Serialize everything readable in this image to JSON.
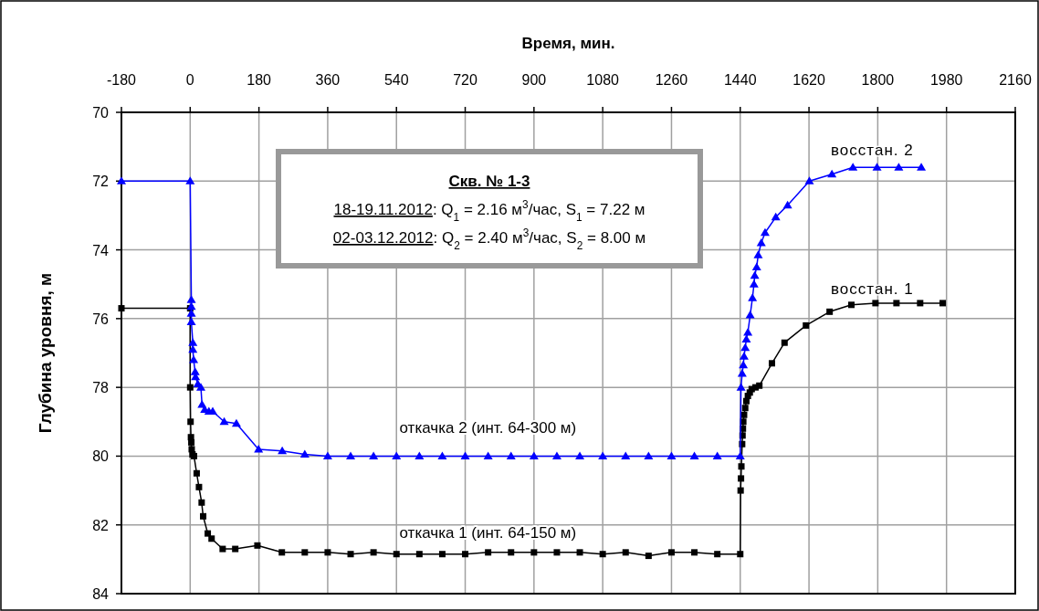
{
  "chart_data": {
    "type": "line",
    "xlabel": "Время, мин.",
    "ylabel": "Глубина уровня, м",
    "xlim": [
      -180,
      2160
    ],
    "xticks": [
      -180,
      0,
      180,
      360,
      540,
      720,
      900,
      1080,
      1260,
      1440,
      1620,
      1800,
      1980,
      2160
    ],
    "ylim": [
      84,
      70
    ],
    "yticks": [
      70,
      72,
      74,
      76,
      78,
      80,
      82,
      84
    ],
    "grid": true,
    "line_style": "solid",
    "series": [
      {
        "color": "#000000",
        "marker": "square",
        "x": [
          -180,
          0,
          0,
          1,
          2,
          3,
          4,
          6,
          10,
          17,
          23,
          30,
          34,
          46,
          56,
          85,
          118,
          176,
          240,
          300,
          360,
          420,
          480,
          540,
          600,
          660,
          720,
          780,
          840,
          900,
          960,
          1020,
          1080,
          1140,
          1200,
          1260,
          1320,
          1380,
          1440,
          1441,
          1442,
          1443,
          1445,
          1446,
          1447,
          1448,
          1450,
          1453,
          1456,
          1460,
          1465,
          1470,
          1480,
          1490,
          1523,
          1556,
          1612,
          1674,
          1731,
          1794,
          1849,
          1911,
          1970
        ],
        "values": [
          75.7,
          75.7,
          78.0,
          79.0,
          79.45,
          79.6,
          79.8,
          79.95,
          80.0,
          80.5,
          80.9,
          81.35,
          81.75,
          82.25,
          82.4,
          82.7,
          82.7,
          82.6,
          82.8,
          82.8,
          82.8,
          82.85,
          82.8,
          82.85,
          82.85,
          82.85,
          82.85,
          82.8,
          82.8,
          82.8,
          82.8,
          82.8,
          82.85,
          82.8,
          82.9,
          82.8,
          82.8,
          82.85,
          82.85,
          81.0,
          80.65,
          80.3,
          79.65,
          79.4,
          79.2,
          79.0,
          78.8,
          78.6,
          78.4,
          78.25,
          78.15,
          78.05,
          78.0,
          77.95,
          77.3,
          76.7,
          76.2,
          75.8,
          75.6,
          75.55,
          75.55,
          75.55,
          75.55
        ]
      },
      {
        "color": "#0000ff",
        "marker": "triangle",
        "x": [
          -180,
          0,
          3,
          3,
          3,
          3,
          7,
          7,
          9,
          13,
          14,
          20,
          28,
          31,
          38,
          49,
          59,
          89,
          121,
          179,
          241,
          300,
          360,
          420,
          480,
          540,
          600,
          660,
          720,
          780,
          840,
          900,
          960,
          1020,
          1080,
          1140,
          1200,
          1260,
          1320,
          1380,
          1440,
          1442,
          1445,
          1448,
          1450,
          1453,
          1456,
          1460,
          1466,
          1472,
          1476,
          1478,
          1483,
          1487,
          1495,
          1505,
          1533,
          1564,
          1621,
          1680,
          1735,
          1798,
          1855,
          1914
        ],
        "values": [
          72.0,
          72.0,
          75.45,
          75.65,
          75.85,
          76.1,
          76.7,
          76.9,
          77.2,
          77.55,
          77.7,
          77.9,
          78.0,
          78.5,
          78.65,
          78.7,
          78.7,
          79.0,
          79.05,
          79.8,
          79.85,
          79.95,
          80.0,
          80.0,
          80.0,
          80.0,
          80.0,
          80.0,
          80.0,
          80.0,
          80.0,
          80.0,
          80.0,
          80.0,
          80.0,
          80.0,
          80.0,
          80.0,
          80.0,
          80.0,
          80.0,
          78.0,
          77.6,
          77.35,
          77.1,
          76.85,
          76.6,
          76.4,
          75.9,
          75.4,
          75.0,
          74.75,
          74.5,
          74.15,
          73.8,
          73.5,
          73.05,
          72.7,
          72.0,
          71.8,
          71.6,
          71.6,
          71.6,
          71.6
        ]
      }
    ],
    "annotations": [
      "откачка 2 (инт. 64-300 м)",
      "откачка 1 (инт. 64-150 м)",
      "восстан. 2",
      "восстан. 1",
      "Скв. № 1-3",
      "18-19.11.2012: Q$_{1}$ = 2.16 м$^{3}$/час, S$_{1}$ = 7.22 м",
      "02-03.12.2012: Q$_{2}$ = 2.40 м$^{3}$/час, S$_{2}$ = 8.00 м"
    ]
  }
}
